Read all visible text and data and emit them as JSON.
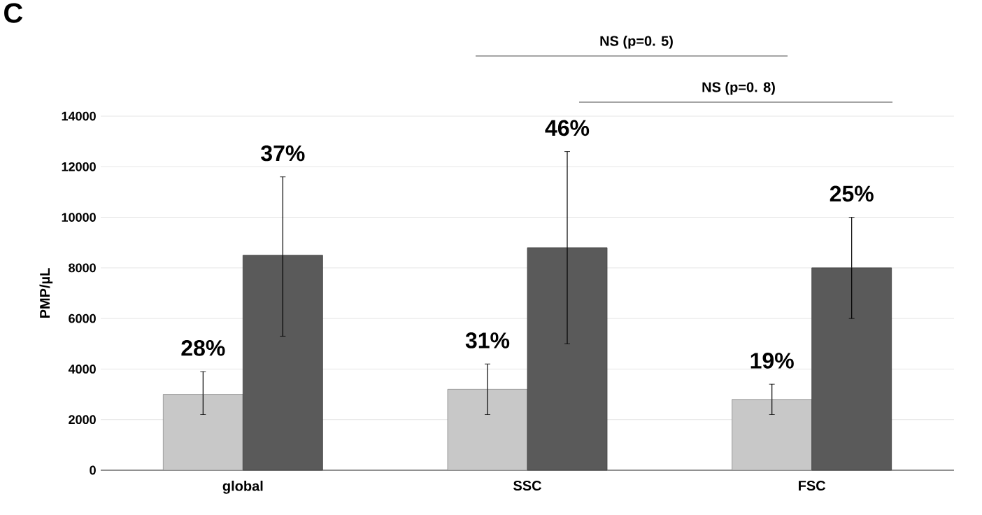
{
  "chart_data": {
    "type": "bar",
    "ylabel": "PMP/µL",
    "categories": [
      "global",
      "SSC",
      "FSC"
    ],
    "series": [
      {
        "color": "#c8c8c8",
        "values": [
          3000,
          3200,
          2800
        ],
        "errors": [
          [
            2200,
            3900
          ],
          [
            2200,
            4200
          ],
          [
            2200,
            3400
          ]
        ]
      },
      {
        "color": "#5a5a5a",
        "values": [
          8500,
          8800,
          8000
        ],
        "errors": [
          [
            5300,
            11600
          ],
          [
            5000,
            12600
          ],
          [
            6000,
            10000
          ]
        ]
      }
    ],
    "ylim": [
      0,
      14000
    ],
    "yticks": [
      0,
      2000,
      4000,
      6000,
      8000,
      10000,
      12000,
      14000
    ],
    "grid": "y",
    "annotations": [
      "C",
      "NS (p=0. 5)",
      "NS (p=0. 8)",
      "28%",
      "37%",
      "31%",
      "46%",
      "19%",
      "25%"
    ]
  }
}
